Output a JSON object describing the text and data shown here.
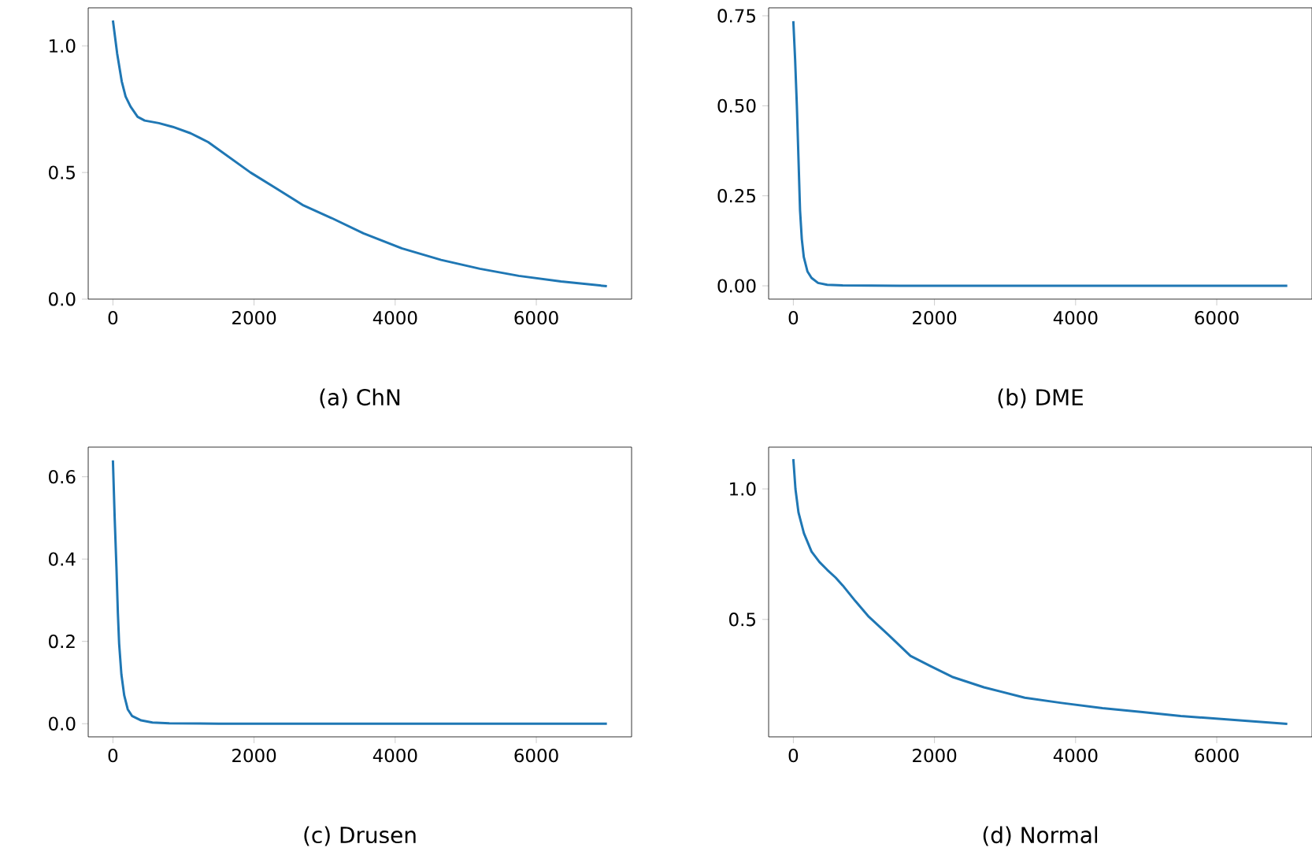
{
  "chart_data": [
    {
      "type": "line",
      "xlabel": "(a) ChN",
      "color": "#1f77b4",
      "xlim": [
        -350,
        7350
      ],
      "ylim": [
        0,
        1.15
      ],
      "xticks": [
        0,
        2000,
        4000,
        6000
      ],
      "yticks": [
        {
          "value": 0,
          "label": "0.0"
        },
        0.5,
        {
          "value": 1,
          "label": "1.0"
        }
      ],
      "x": [
        0,
        60,
        125,
        180,
        250,
        350,
        450,
        650,
        850,
        1100,
        1350,
        1650,
        1950,
        2300,
        2700,
        3100,
        3550,
        4100,
        4650,
        5200,
        5750,
        6350,
        7000
      ],
      "values": [
        1.1,
        0.97,
        0.86,
        0.8,
        0.76,
        0.72,
        0.705,
        0.695,
        0.68,
        0.655,
        0.62,
        0.56,
        0.5,
        0.44,
        0.37,
        0.32,
        0.26,
        0.2,
        0.155,
        0.12,
        0.092,
        0.07,
        0.051
      ]
    },
    {
      "type": "line",
      "xlabel": "(b) DME",
      "color": "#1f77b4",
      "xlim": [
        -350,
        7350
      ],
      "ylim": [
        -0.037,
        0.772
      ],
      "xticks": [
        0,
        2000,
        4000,
        6000
      ],
      "yticks": [
        {
          "value": 0,
          "label": "0.00"
        },
        0.25,
        {
          "value": 0.5,
          "label": "0.50"
        },
        0.75
      ],
      "x": [
        0,
        25,
        50,
        75,
        95,
        120,
        148,
        200,
        258,
        350,
        480,
        700,
        1500,
        3000,
        5000,
        7000
      ],
      "values": [
        0.735,
        0.63,
        0.5,
        0.34,
        0.21,
        0.13,
        0.08,
        0.04,
        0.022,
        0.008,
        0.003,
        0.001,
        0,
        0,
        0,
        0
      ]
    },
    {
      "type": "line",
      "xlabel": "(c) Drusen",
      "color": "#1f77b4",
      "xlim": [
        -350,
        7350
      ],
      "ylim": [
        -0.032,
        0.672
      ],
      "xticks": [
        0,
        2000,
        4000,
        6000
      ],
      "yticks": [
        {
          "value": 0,
          "label": "0.0"
        },
        {
          "value": 0.2,
          "label": "0.2"
        },
        {
          "value": 0.4,
          "label": "0.4"
        },
        {
          "value": 0.6,
          "label": "0.6"
        }
      ],
      "x": [
        0,
        25,
        50,
        70,
        88,
        120,
        160,
        210,
        270,
        400,
        560,
        800,
        1500,
        3000,
        5000,
        7000
      ],
      "values": [
        0.64,
        0.5,
        0.38,
        0.27,
        0.195,
        0.12,
        0.069,
        0.035,
        0.019,
        0.008,
        0.003,
        0.001,
        0,
        0,
        0,
        0
      ]
    },
    {
      "type": "line",
      "xlabel": "(d) Normal",
      "color": "#1f77b4",
      "xlim": [
        -350,
        7350
      ],
      "ylim": [
        0.05,
        1.16
      ],
      "xticks": [
        0,
        2000,
        4000,
        6000
      ],
      "yticks": [
        0.5,
        {
          "value": 1,
          "label": "1.0"
        }
      ],
      "x": [
        0,
        30,
        73,
        150,
        258,
        370,
        480,
        600,
        700,
        880,
        1070,
        1350,
        1660,
        1950,
        2250,
        2700,
        3280,
        3800,
        4380,
        4950,
        5490,
        6250,
        7000
      ],
      "values": [
        1.114,
        1.0,
        0.91,
        0.83,
        0.76,
        0.72,
        0.69,
        0.66,
        0.63,
        0.57,
        0.51,
        0.44,
        0.36,
        0.32,
        0.28,
        0.24,
        0.2,
        0.18,
        0.16,
        0.145,
        0.13,
        0.115,
        0.1
      ]
    }
  ]
}
